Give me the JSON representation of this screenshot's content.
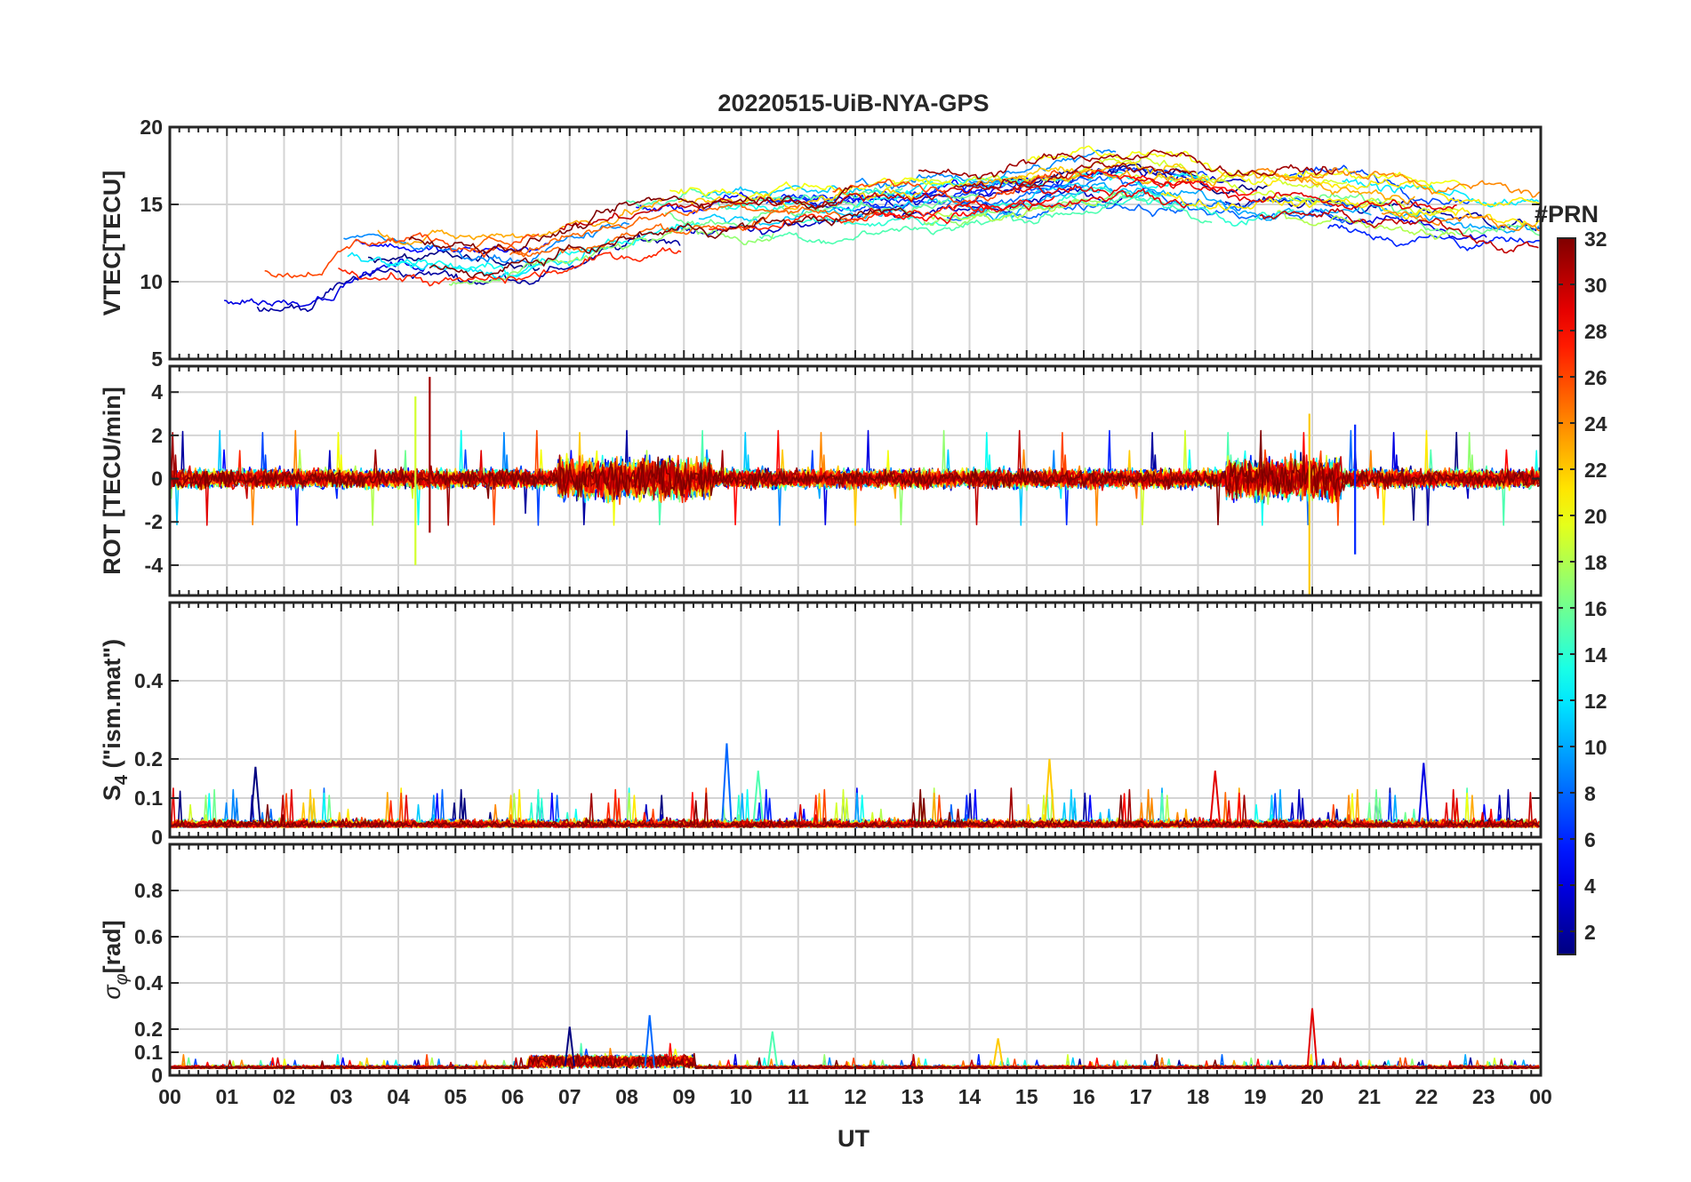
{
  "title": "20220515-UiB-NYA-GPS",
  "xlabel": "UT",
  "x_ticklabels": [
    "00",
    "01",
    "02",
    "03",
    "04",
    "05",
    "06",
    "07",
    "08",
    "09",
    "10",
    "11",
    "12",
    "13",
    "14",
    "15",
    "16",
    "17",
    "18",
    "19",
    "20",
    "21",
    "22",
    "23",
    "00"
  ],
  "colorbar": {
    "title": "#PRN",
    "ticks": [
      2,
      4,
      6,
      8,
      10,
      12,
      14,
      16,
      18,
      20,
      22,
      24,
      26,
      28,
      30,
      32
    ],
    "range": [
      1,
      32
    ],
    "colormap": "jet"
  },
  "chart_data": [
    {
      "type": "line",
      "ylabel": "VTEC[TECU]",
      "xlim": [
        0,
        24
      ],
      "ylim": [
        5,
        20
      ],
      "yticks": [
        5,
        10,
        15,
        20
      ],
      "grid": true,
      "series_count": 32,
      "anchors": [
        {
          "x": 0,
          "y": 9.5
        },
        {
          "x": 2,
          "y": 9.5
        },
        {
          "x": 3,
          "y": 12.5
        },
        {
          "x": 5,
          "y": 11.0
        },
        {
          "x": 8,
          "y": 14.0
        },
        {
          "x": 10,
          "y": 14.5
        },
        {
          "x": 12,
          "y": 15.0
        },
        {
          "x": 14,
          "y": 15.5
        },
        {
          "x": 16,
          "y": 17.0
        },
        {
          "x": 18,
          "y": 15.5
        },
        {
          "x": 20,
          "y": 15.5
        },
        {
          "x": 22,
          "y": 14.5
        },
        {
          "x": 24,
          "y": 13.5
        }
      ]
    },
    {
      "type": "line",
      "ylabel": "ROT [TECU/min]",
      "xlim": [
        0,
        24
      ],
      "ylim": [
        -5.4,
        5.2
      ],
      "yticks": [
        -4,
        -2,
        0,
        2,
        4
      ],
      "grid": true,
      "series_count": 32,
      "spikes": [
        {
          "x": 4.3,
          "y_min": -4.0,
          "y_max": 3.8
        },
        {
          "x": 4.55,
          "y_min": -2.5,
          "y_max": 4.7
        },
        {
          "x": 19.95,
          "y_min": -5.4,
          "y_max": 3.0
        },
        {
          "x": 20.75,
          "y_min": -3.5,
          "y_max": 2.5
        }
      ]
    },
    {
      "type": "line",
      "ylabel": "S4",
      "ylabel_suffix": "(\"ism.mat\")",
      "xlim": [
        0,
        24
      ],
      "ylim": [
        0,
        0.6
      ],
      "yticks": [
        0,
        0.1,
        0.2,
        0.4
      ],
      "ytick_labels": [
        "0",
        "0.1",
        "0.2",
        "0.4"
      ],
      "grid": true,
      "series_count": 32,
      "peaks": [
        {
          "x": 1.5,
          "y": 0.18
        },
        {
          "x": 9.75,
          "y": 0.24
        },
        {
          "x": 10.3,
          "y": 0.17
        },
        {
          "x": 15.4,
          "y": 0.2
        },
        {
          "x": 18.3,
          "y": 0.17
        },
        {
          "x": 21.95,
          "y": 0.19
        }
      ]
    },
    {
      "type": "line",
      "ylabel": "σφ[rad]",
      "xlim": [
        0,
        24
      ],
      "ylim": [
        0,
        1.0
      ],
      "yticks": [
        0,
        0.1,
        0.2,
        0.4,
        0.6,
        0.8
      ],
      "ytick_labels": [
        "0",
        "0.1",
        "0.2",
        "0.4",
        "0.6",
        "0.8"
      ],
      "grid": true,
      "series_count": 32,
      "peaks": [
        {
          "x": 7.0,
          "y": 0.21
        },
        {
          "x": 8.4,
          "y": 0.26
        },
        {
          "x": 10.55,
          "y": 0.19
        },
        {
          "x": 14.5,
          "y": 0.16
        },
        {
          "x": 20.0,
          "y": 0.29
        }
      ]
    }
  ]
}
